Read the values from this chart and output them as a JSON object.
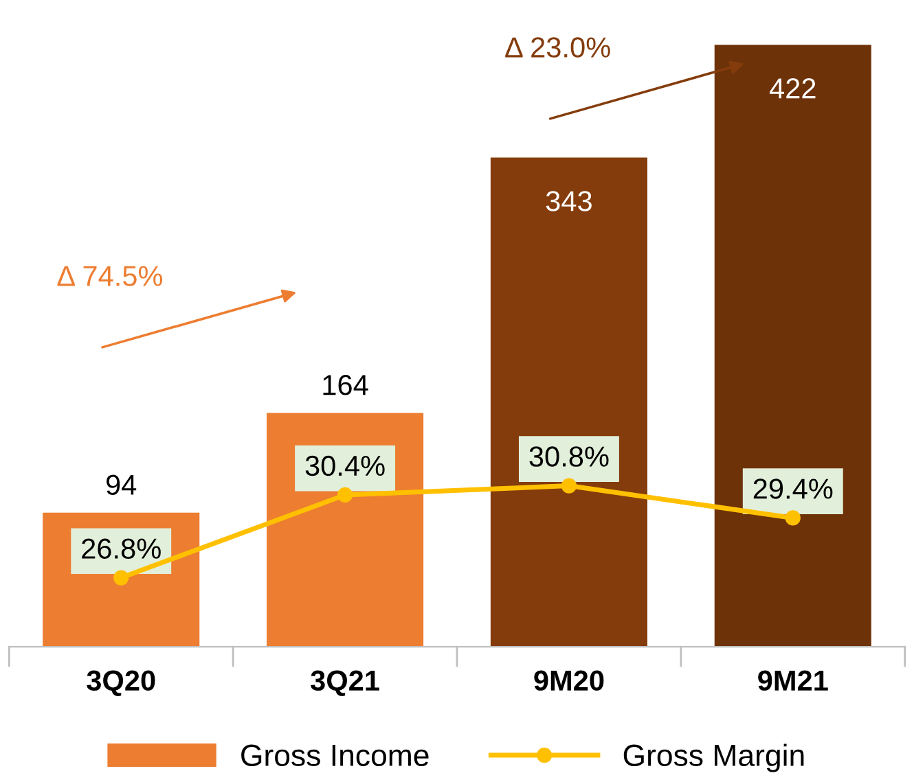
{
  "chart_data": {
    "type": "bar",
    "categories": [
      "3Q20",
      "3Q21",
      "9M20",
      "9M21"
    ],
    "series": [
      {
        "name": "Gross Income",
        "colors": [
          "#ed7d31",
          "#ed7d31",
          "#843c0c",
          "#6e3209"
        ],
        "values": [
          94,
          164,
          343,
          422
        ]
      },
      {
        "name": "Gross Margin",
        "type": "line",
        "axis": "y2",
        "color": "#ffc000",
        "marker": "circle",
        "values": [
          26.8,
          30.4,
          30.8,
          29.4
        ],
        "value_labels": [
          "26.8%",
          "30.4%",
          "30.8%",
          "29.4%"
        ]
      }
    ],
    "data_labels": true,
    "legend": "bottom",
    "tick_labels": "x",
    "annotations": [
      "Δ 74.5%",
      "Δ 23.0%"
    ]
  }
}
